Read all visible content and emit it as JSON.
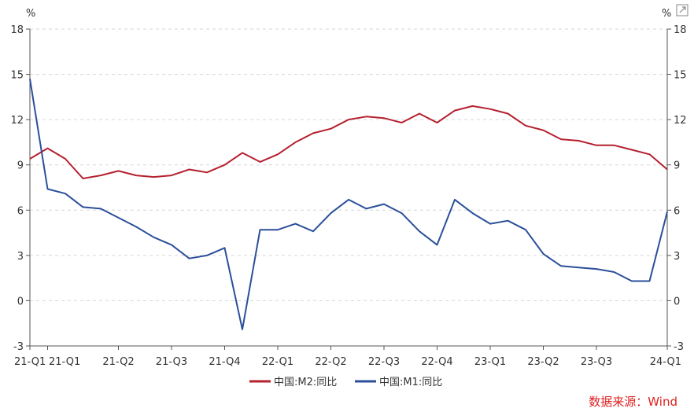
{
  "chart_data": {
    "type": "line",
    "x_tick_labels": [
      "21-Q1",
      "21-Q1",
      "21-Q2",
      "21-Q3",
      "21-Q4",
      "22-Q1",
      "22-Q2",
      "22-Q3",
      "22-Q4",
      "23-Q1",
      "23-Q2",
      "23-Q3",
      "24-Q1"
    ],
    "ylim": [
      -3,
      18
    ],
    "y_ticks": [
      -3,
      0,
      3,
      6,
      9,
      12,
      15,
      18
    ],
    "left_unit": "%",
    "right_unit": "%",
    "grid": true,
    "legend_position": "bottom",
    "series": [
      {
        "name": "中国:M2:同比",
        "color": "#b5202e",
        "values": [
          9.4,
          10.1,
          9.4,
          8.1,
          8.3,
          8.6,
          8.3,
          8.2,
          8.3,
          8.7,
          8.5,
          9.0,
          9.8,
          9.2,
          9.7,
          10.5,
          11.1,
          11.4,
          12.0,
          12.2,
          12.1,
          11.8,
          12.4,
          11.8,
          12.6,
          12.9,
          12.7,
          12.4,
          11.6,
          11.3,
          10.7,
          10.6,
          10.3,
          10.3,
          10.0,
          9.7,
          8.7
        ]
      },
      {
        "name": "中国:M1:同比",
        "color": "#2b4f9a",
        "values": [
          14.7,
          7.4,
          7.1,
          6.2,
          6.1,
          5.5,
          4.9,
          4.2,
          3.7,
          2.8,
          3.0,
          3.5,
          -1.9,
          4.7,
          4.7,
          5.1,
          4.6,
          5.8,
          6.7,
          6.1,
          6.4,
          5.8,
          4.6,
          3.7,
          6.7,
          5.8,
          5.1,
          5.3,
          4.7,
          3.1,
          2.3,
          2.2,
          2.1,
          1.9,
          1.3,
          1.3,
          5.9
        ]
      }
    ]
  },
  "source": "数据来源：Wind",
  "colors": {
    "axis": "#555555",
    "grid": "#d6d6d6",
    "source": "#e02020"
  },
  "icons": {
    "corner": "expand-icon"
  }
}
